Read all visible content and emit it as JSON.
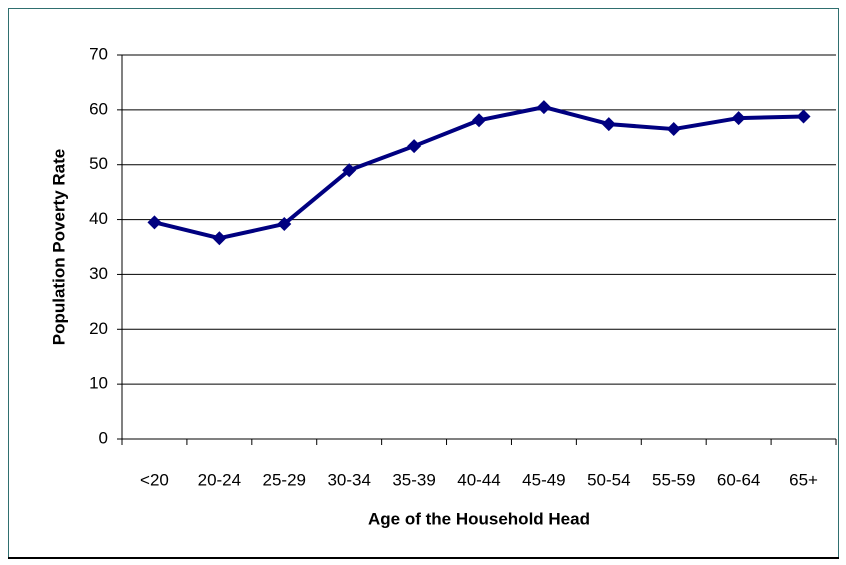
{
  "chart_data": {
    "type": "line",
    "x_label": "Age of the Household Head",
    "y_label": "Population Poverty Rate",
    "categories": [
      "<20",
      "20-24",
      "25-29",
      "30-34",
      "35-39",
      "40-44",
      "45-49",
      "50-54",
      "55-59",
      "60-64",
      "65+"
    ],
    "series": [
      {
        "color": "#000080",
        "values": [
          39.5,
          36.6,
          39.2,
          49.0,
          53.4,
          58.1,
          60.5,
          57.4,
          56.5,
          58.5,
          58.8
        ]
      }
    ],
    "ylim": [
      0,
      70
    ],
    "yticks": [
      0,
      10,
      20,
      30,
      40,
      50,
      60,
      70
    ],
    "grid": true
  }
}
